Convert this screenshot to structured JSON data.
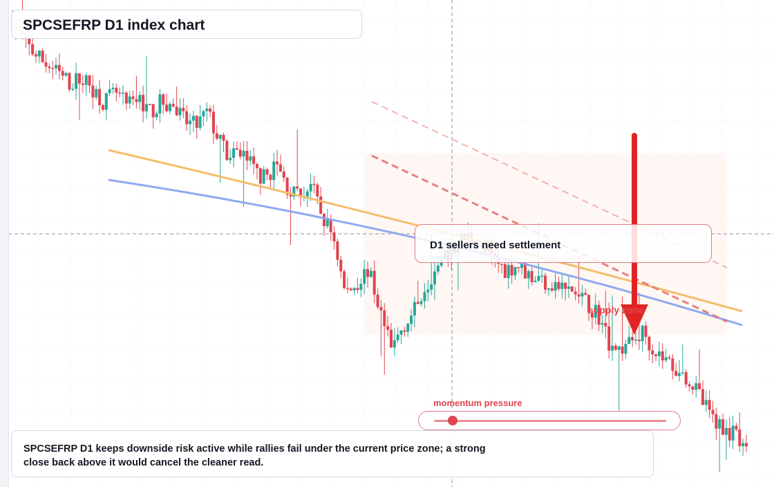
{
  "title": "SPCSEFRP D1 index chart",
  "callout": "D1 sellers need settlement",
  "supply_label": "supply zone",
  "momentum": {
    "label": "momentum pressure",
    "level": 0.05
  },
  "note": "SPCSEFRP D1 keeps downside risk active while rallies fail under the current price zone; a strong close back above it would cancel the cleaner read.",
  "colors": {
    "up": "#26a69a",
    "down": "#e0444f",
    "trend_upper": "#f5bd6a",
    "trend_lower": "#8fa9f0",
    "arrow": "#e02424"
  },
  "chart_data": {
    "type": "candlestick",
    "title": "SPCSEFRP D1 index chart",
    "timeframe": "D1",
    "price_axis_labels": "not shown",
    "y_range_estimate": [
      0,
      100
    ],
    "close_path_estimate": [
      97,
      93,
      90,
      88,
      86,
      84,
      85,
      83,
      80,
      82,
      79,
      81,
      78,
      80,
      79,
      76,
      75,
      78,
      72,
      68,
      70,
      66,
      64,
      67,
      62,
      60,
      63,
      56,
      52,
      40,
      42,
      45,
      37,
      28,
      33,
      36,
      42,
      45,
      48,
      51,
      52,
      49,
      47,
      45,
      46,
      44,
      43,
      42,
      41,
      40,
      38,
      36,
      30,
      28,
      30,
      32,
      28,
      26,
      24,
      22,
      18,
      14,
      12,
      10,
      6
    ],
    "annotations": [
      "D1 sellers need settlement",
      "supply zone",
      "momentum pressure"
    ],
    "trendlines": [
      {
        "color": "orange",
        "style": "solid",
        "direction": "descending"
      },
      {
        "color": "blue",
        "style": "solid",
        "direction": "descending"
      },
      {
        "color": "red",
        "style": "dashed",
        "direction": "descending"
      },
      {
        "color": "red",
        "style": "dashed-light",
        "direction": "descending"
      }
    ],
    "arrow": "down",
    "grid": true
  }
}
